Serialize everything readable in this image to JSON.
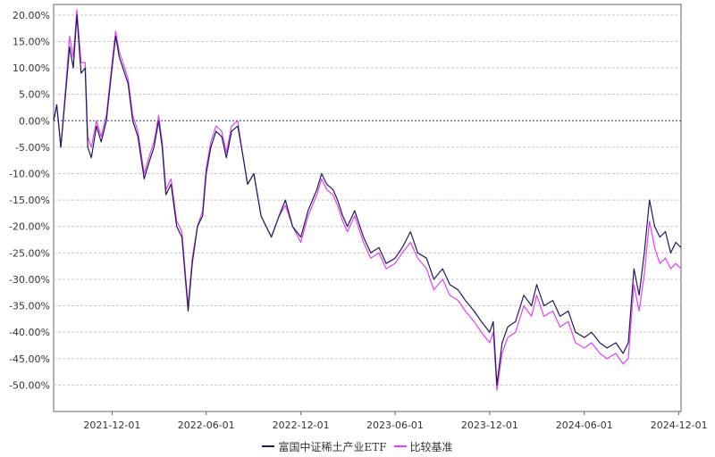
{
  "chart_data": {
    "type": "line",
    "title": "",
    "xlabel": "",
    "ylabel": "",
    "y_format": "percent",
    "ylim": [
      -55,
      22
    ],
    "xlim": [
      "2021-08-10",
      "2024-12-05"
    ],
    "y_ticks": [
      "20.00%",
      "15.00%",
      "10.00%",
      "5.00%",
      "0.00%",
      "-5.00%",
      "-10.00%",
      "-15.00%",
      "-20.00%",
      "-25.00%",
      "-30.00%",
      "-35.00%",
      "-40.00%",
      "-45.00%",
      "-50.00%"
    ],
    "y_tick_values": [
      20,
      15,
      10,
      5,
      0,
      -5,
      -10,
      -15,
      -20,
      -25,
      -30,
      -35,
      -40,
      -45,
      -50
    ],
    "x_ticks": [
      "2021-12-01",
      "2022-06-01",
      "2022-12-01",
      "2023-06-01",
      "2023-12-01",
      "2024-06-01",
      "2024-12-01"
    ],
    "grid": true,
    "legend_position": "bottom",
    "series": [
      {
        "name": "富国中证稀土产业ETF",
        "color": "#1f1a5c",
        "points": [
          [
            "2021-08-10",
            0
          ],
          [
            "2021-08-16",
            3
          ],
          [
            "2021-08-24",
            -5
          ],
          [
            "2021-09-02",
            5
          ],
          [
            "2021-09-10",
            14
          ],
          [
            "2021-09-17",
            10
          ],
          [
            "2021-09-24",
            20
          ],
          [
            "2021-10-02",
            9
          ],
          [
            "2021-10-10",
            10
          ],
          [
            "2021-10-15",
            -5
          ],
          [
            "2021-10-22",
            -7
          ],
          [
            "2021-11-01",
            -1
          ],
          [
            "2021-11-10",
            -4
          ],
          [
            "2021-11-20",
            0
          ],
          [
            "2021-12-01",
            10
          ],
          [
            "2021-12-08",
            16
          ],
          [
            "2021-12-15",
            12
          ],
          [
            "2021-12-22",
            10
          ],
          [
            "2022-01-01",
            7
          ],
          [
            "2022-01-10",
            0
          ],
          [
            "2022-01-20",
            -3
          ],
          [
            "2022-02-01",
            -11
          ],
          [
            "2022-02-10",
            -8
          ],
          [
            "2022-02-20",
            -5
          ],
          [
            "2022-03-01",
            0
          ],
          [
            "2022-03-08",
            -5
          ],
          [
            "2022-03-15",
            -14
          ],
          [
            "2022-03-25",
            -12
          ],
          [
            "2022-04-05",
            -20
          ],
          [
            "2022-04-15",
            -22
          ],
          [
            "2022-04-27",
            -36
          ],
          [
            "2022-05-05",
            -27
          ],
          [
            "2022-05-15",
            -20
          ],
          [
            "2022-05-25",
            -18
          ],
          [
            "2022-06-01",
            -10
          ],
          [
            "2022-06-10",
            -5
          ],
          [
            "2022-06-20",
            -2
          ],
          [
            "2022-07-01",
            -3
          ],
          [
            "2022-07-10",
            -7
          ],
          [
            "2022-07-20",
            -2
          ],
          [
            "2022-08-01",
            -1
          ],
          [
            "2022-08-10",
            -6
          ],
          [
            "2022-08-20",
            -12
          ],
          [
            "2022-09-01",
            -10
          ],
          [
            "2022-09-15",
            -18
          ],
          [
            "2022-10-05",
            -22
          ],
          [
            "2022-10-20",
            -18
          ],
          [
            "2022-11-01",
            -15
          ],
          [
            "2022-11-15",
            -20
          ],
          [
            "2022-12-01",
            -22
          ],
          [
            "2022-12-15",
            -17
          ],
          [
            "2023-01-01",
            -13
          ],
          [
            "2023-01-10",
            -10
          ],
          [
            "2023-01-20",
            -12
          ],
          [
            "2023-02-01",
            -13
          ],
          [
            "2023-02-10",
            -15
          ],
          [
            "2023-02-20",
            -18
          ],
          [
            "2023-03-01",
            -20
          ],
          [
            "2023-03-15",
            -17
          ],
          [
            "2023-04-01",
            -22
          ],
          [
            "2023-04-15",
            -25
          ],
          [
            "2023-05-01",
            -24
          ],
          [
            "2023-05-15",
            -27
          ],
          [
            "2023-06-01",
            -26
          ],
          [
            "2023-06-15",
            -24
          ],
          [
            "2023-07-01",
            -21
          ],
          [
            "2023-07-15",
            -25
          ],
          [
            "2023-08-01",
            -26
          ],
          [
            "2023-08-15",
            -30
          ],
          [
            "2023-09-01",
            -28
          ],
          [
            "2023-09-15",
            -31
          ],
          [
            "2023-10-01",
            -32
          ],
          [
            "2023-10-15",
            -34
          ],
          [
            "2023-11-01",
            -36
          ],
          [
            "2023-11-15",
            -38
          ],
          [
            "2023-12-01",
            -40
          ],
          [
            "2023-12-08",
            -38
          ],
          [
            "2023-12-15",
            -50
          ],
          [
            "2023-12-25",
            -42
          ],
          [
            "2024-01-05",
            -39
          ],
          [
            "2024-01-20",
            -38
          ],
          [
            "2024-02-05",
            -33
          ],
          [
            "2024-02-20",
            -35
          ],
          [
            "2024-03-01",
            -31
          ],
          [
            "2024-03-15",
            -35
          ],
          [
            "2024-04-01",
            -34
          ],
          [
            "2024-04-15",
            -37
          ],
          [
            "2024-05-01",
            -36
          ],
          [
            "2024-05-15",
            -40
          ],
          [
            "2024-06-01",
            -41
          ],
          [
            "2024-06-15",
            -40
          ],
          [
            "2024-07-01",
            -42
          ],
          [
            "2024-07-15",
            -43
          ],
          [
            "2024-08-01",
            -42
          ],
          [
            "2024-08-15",
            -44
          ],
          [
            "2024-08-25",
            -42
          ],
          [
            "2024-09-05",
            -28
          ],
          [
            "2024-09-15",
            -33
          ],
          [
            "2024-09-25",
            -25
          ],
          [
            "2024-10-05",
            -15
          ],
          [
            "2024-10-15",
            -20
          ],
          [
            "2024-10-25",
            -22
          ],
          [
            "2024-11-05",
            -21
          ],
          [
            "2024-11-15",
            -25
          ],
          [
            "2024-11-25",
            -23
          ],
          [
            "2024-12-05",
            -24
          ]
        ]
      },
      {
        "name": "比较基准",
        "color": "#e040fb",
        "points": [
          [
            "2021-08-10",
            0
          ],
          [
            "2021-08-16",
            3
          ],
          [
            "2021-08-24",
            -5
          ],
          [
            "2021-09-02",
            6
          ],
          [
            "2021-09-10",
            16
          ],
          [
            "2021-09-17",
            12
          ],
          [
            "2021-09-24",
            21
          ],
          [
            "2021-10-02",
            11
          ],
          [
            "2021-10-10",
            11
          ],
          [
            "2021-10-15",
            -3
          ],
          [
            "2021-10-22",
            -5
          ],
          [
            "2021-11-01",
            0
          ],
          [
            "2021-11-10",
            -3
          ],
          [
            "2021-11-20",
            1
          ],
          [
            "2021-12-01",
            11
          ],
          [
            "2021-12-08",
            17
          ],
          [
            "2021-12-15",
            13
          ],
          [
            "2021-12-22",
            11
          ],
          [
            "2022-01-01",
            8
          ],
          [
            "2022-01-10",
            1
          ],
          [
            "2022-01-20",
            -2
          ],
          [
            "2022-02-01",
            -10
          ],
          [
            "2022-02-10",
            -7
          ],
          [
            "2022-02-20",
            -4
          ],
          [
            "2022-03-01",
            1
          ],
          [
            "2022-03-08",
            -4
          ],
          [
            "2022-03-15",
            -13
          ],
          [
            "2022-03-25",
            -11
          ],
          [
            "2022-04-05",
            -19
          ],
          [
            "2022-04-15",
            -21
          ],
          [
            "2022-04-27",
            -35
          ],
          [
            "2022-05-05",
            -26
          ],
          [
            "2022-05-15",
            -20
          ],
          [
            "2022-05-25",
            -17
          ],
          [
            "2022-06-01",
            -9
          ],
          [
            "2022-06-10",
            -4
          ],
          [
            "2022-06-20",
            -1
          ],
          [
            "2022-07-01",
            -2
          ],
          [
            "2022-07-10",
            -6
          ],
          [
            "2022-07-20",
            -1
          ],
          [
            "2022-08-01",
            0
          ],
          [
            "2022-08-10",
            -6
          ],
          [
            "2022-08-20",
            -12
          ],
          [
            "2022-09-01",
            -10
          ],
          [
            "2022-09-15",
            -18
          ],
          [
            "2022-10-05",
            -22
          ],
          [
            "2022-10-20",
            -18
          ],
          [
            "2022-11-01",
            -16
          ],
          [
            "2022-11-15",
            -20
          ],
          [
            "2022-12-01",
            -23
          ],
          [
            "2022-12-15",
            -18
          ],
          [
            "2023-01-01",
            -14
          ],
          [
            "2023-01-10",
            -11
          ],
          [
            "2023-01-20",
            -13
          ],
          [
            "2023-02-01",
            -14
          ],
          [
            "2023-02-10",
            -16
          ],
          [
            "2023-02-20",
            -19
          ],
          [
            "2023-03-01",
            -21
          ],
          [
            "2023-03-15",
            -18
          ],
          [
            "2023-04-01",
            -23
          ],
          [
            "2023-04-15",
            -26
          ],
          [
            "2023-05-01",
            -25
          ],
          [
            "2023-05-15",
            -28
          ],
          [
            "2023-06-01",
            -27
          ],
          [
            "2023-06-15",
            -25
          ],
          [
            "2023-07-01",
            -23
          ],
          [
            "2023-07-15",
            -26
          ],
          [
            "2023-08-01",
            -28
          ],
          [
            "2023-08-15",
            -32
          ],
          [
            "2023-09-01",
            -30
          ],
          [
            "2023-09-15",
            -33
          ],
          [
            "2023-10-01",
            -34
          ],
          [
            "2023-10-15",
            -36
          ],
          [
            "2023-11-01",
            -38
          ],
          [
            "2023-11-15",
            -40
          ],
          [
            "2023-12-01",
            -42
          ],
          [
            "2023-12-08",
            -40
          ],
          [
            "2023-12-15",
            -51
          ],
          [
            "2023-12-25",
            -44
          ],
          [
            "2024-01-05",
            -41
          ],
          [
            "2024-01-20",
            -40
          ],
          [
            "2024-02-05",
            -35
          ],
          [
            "2024-02-20",
            -37
          ],
          [
            "2024-03-01",
            -33
          ],
          [
            "2024-03-15",
            -37
          ],
          [
            "2024-04-01",
            -36
          ],
          [
            "2024-04-15",
            -39
          ],
          [
            "2024-05-01",
            -38
          ],
          [
            "2024-05-15",
            -42
          ],
          [
            "2024-06-01",
            -43
          ],
          [
            "2024-06-15",
            -42
          ],
          [
            "2024-07-01",
            -44
          ],
          [
            "2024-07-15",
            -45
          ],
          [
            "2024-08-01",
            -44
          ],
          [
            "2024-08-15",
            -46
          ],
          [
            "2024-08-25",
            -45
          ],
          [
            "2024-09-05",
            -31
          ],
          [
            "2024-09-15",
            -36
          ],
          [
            "2024-09-25",
            -29
          ],
          [
            "2024-10-05",
            -19
          ],
          [
            "2024-10-15",
            -24
          ],
          [
            "2024-10-25",
            -27
          ],
          [
            "2024-11-05",
            -26
          ],
          [
            "2024-11-15",
            -28
          ],
          [
            "2024-11-25",
            -27
          ],
          [
            "2024-12-05",
            -28
          ]
        ]
      }
    ]
  }
}
